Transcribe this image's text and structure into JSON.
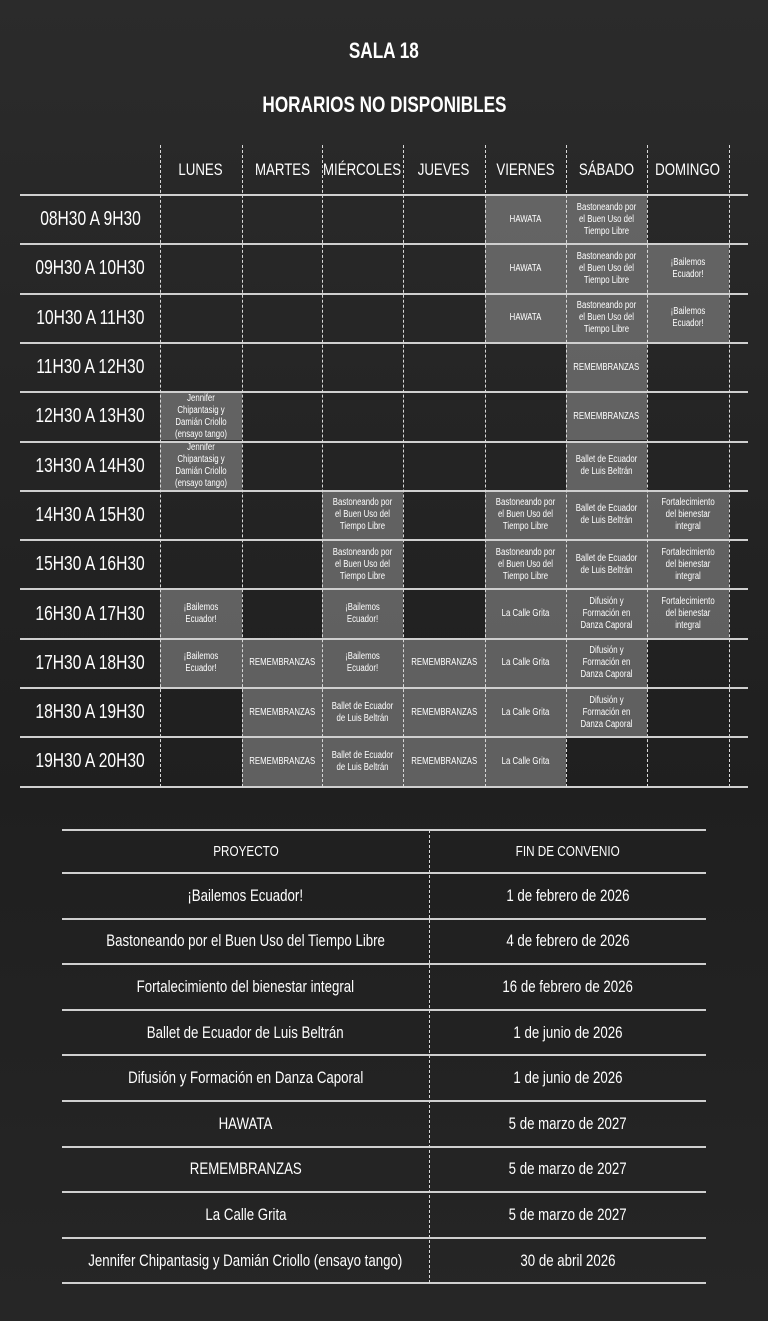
{
  "title": "SALA 18",
  "subtitle": "HORARIOS NO DISPONIBLES",
  "colors": {
    "filled_cell": "#8c8c8c",
    "background": "#262626",
    "text": "#ffffff"
  },
  "days": [
    "LUNES",
    "MARTES",
    "MIÉRCOLES",
    "JUEVES",
    "VIERNES",
    "SÁBADO",
    "DOMINGO"
  ],
  "schedule": [
    {
      "time": "08H30 A 9H30",
      "cells": [
        "",
        "",
        "",
        "",
        "HAWATA",
        "Bastoneando por el Buen Uso del Tiempo Libre",
        ""
      ]
    },
    {
      "time": "09H30 A 10H30",
      "cells": [
        "",
        "",
        "",
        "",
        "HAWATA",
        "Bastoneando por el Buen Uso del Tiempo Libre",
        "¡Bailemos Ecuador!"
      ]
    },
    {
      "time": "10H30 A 11H30",
      "cells": [
        "",
        "",
        "",
        "",
        "HAWATA",
        "Bastoneando por el Buen Uso del Tiempo Libre",
        "¡Bailemos Ecuador!"
      ]
    },
    {
      "time": "11H30 A 12H30",
      "cells": [
        "",
        "",
        "",
        "",
        "",
        "REMEMBRANZAS",
        ""
      ]
    },
    {
      "time": "12H30 A 13H30",
      "cells": [
        "Jennifer Chipantasig y Damián Criollo (ensayo tango)",
        "",
        "",
        "",
        "",
        "REMEMBRANZAS",
        ""
      ]
    },
    {
      "time": "13H30 A 14H30",
      "cells": [
        "Jennifer Chipantasig y Damián Criollo (ensayo tango)",
        "",
        "",
        "",
        "",
        "Ballet de Ecuador de Luis Beltrán",
        ""
      ]
    },
    {
      "time": "14H30 A 15H30",
      "cells": [
        "",
        "",
        "Bastoneando por el Buen Uso del Tiempo Libre",
        "",
        "Bastoneando por el Buen Uso del Tiempo Libre",
        "Ballet de Ecuador de Luis Beltrán",
        "Fortalecimiento del bienestar integral"
      ]
    },
    {
      "time": "15H30 A 16H30",
      "cells": [
        "",
        "",
        "Bastoneando por el Buen Uso del Tiempo Libre",
        "",
        "Bastoneando por el Buen Uso del Tiempo Libre",
        "Ballet de Ecuador de Luis Beltrán",
        "Fortalecimiento del bienestar integral"
      ]
    },
    {
      "time": "16H30 A 17H30",
      "cells": [
        "¡Bailemos Ecuador!",
        "",
        "¡Bailemos Ecuador!",
        "",
        "La Calle Grita",
        "Difusión y Formación en Danza Caporal",
        "Fortalecimiento del bienestar integral"
      ]
    },
    {
      "time": "17H30 A 18H30",
      "cells": [
        "¡Bailemos Ecuador!",
        "REMEMBRANZAS",
        "¡Bailemos Ecuador!",
        "REMEMBRANZAS",
        "La Calle Grita",
        "Difusión y Formación en Danza Caporal",
        ""
      ]
    },
    {
      "time": "18H30 A 19H30",
      "cells": [
        "",
        "REMEMBRANZAS",
        "Ballet de Ecuador de Luis Beltrán",
        "REMEMBRANZAS",
        "La Calle Grita",
        "Difusión y Formación en Danza Caporal",
        ""
      ]
    },
    {
      "time": "19H30 A 20H30",
      "cells": [
        "",
        "REMEMBRANZAS",
        "Ballet de Ecuador de Luis Beltrán",
        "REMEMBRANZAS",
        "La Calle Grita",
        "",
        ""
      ]
    }
  ],
  "projects_table": {
    "headers": [
      "PROYECTO",
      "FIN DE CONVENIO"
    ],
    "rows": [
      [
        "¡Bailemos Ecuador!",
        "1 de febrero de 2026"
      ],
      [
        "Bastoneando por el Buen Uso del Tiempo Libre",
        "4 de febrero de 2026"
      ],
      [
        "Fortalecimiento del bienestar integral",
        "16 de febrero de 2026"
      ],
      [
        "Ballet de Ecuador de Luis Beltrán",
        "1 de junio de 2026"
      ],
      [
        "Difusión y Formación en Danza Caporal",
        "1 de junio de 2026"
      ],
      [
        "HAWATA",
        "5 de marzo de 2027"
      ],
      [
        "REMEMBRANZAS",
        "5 de marzo de 2027"
      ],
      [
        "La Calle Grita",
        "5 de marzo de 2027"
      ],
      [
        "Jennifer Chipantasig y Damián Criollo (ensayo tango)",
        "30 de abril 2026"
      ]
    ]
  }
}
